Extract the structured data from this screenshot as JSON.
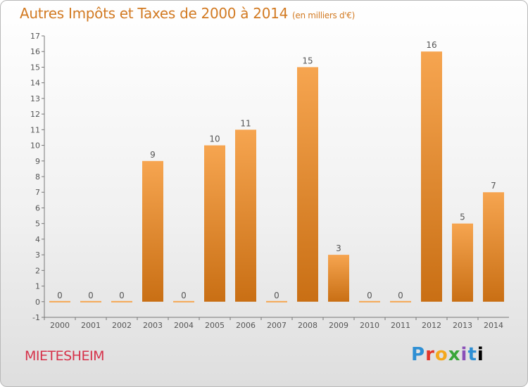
{
  "header": {
    "title": "Autres Impôts et Taxes de 2000 à 2014",
    "unit": "(en milliers d'€)"
  },
  "footer": {
    "commune": "MIETESHEIM",
    "logo_text": "Proxiti"
  },
  "colors": {
    "bar_top": "#f6a550",
    "bar_bottom": "#c96f14",
    "title": "#d27a22",
    "commune": "#d6324a"
  },
  "chart_data": {
    "type": "bar",
    "title": "Autres Impôts et Taxes de 2000 à 2014",
    "subtitle": "(en milliers d'€)",
    "xlabel": "",
    "ylabel": "",
    "categories": [
      "2000",
      "2001",
      "2002",
      "2003",
      "2004",
      "2005",
      "2006",
      "2007",
      "2008",
      "2009",
      "2010",
      "2011",
      "2012",
      "2013",
      "2014"
    ],
    "values": [
      0,
      0,
      0,
      9,
      0,
      10,
      11,
      0,
      15,
      3,
      0,
      0,
      16,
      5,
      7
    ],
    "data_labels": [
      "0",
      "0",
      "0",
      "9",
      "0",
      "10",
      "11",
      "0",
      "15",
      "3",
      "0",
      "0",
      "16",
      "5",
      "7"
    ],
    "y_ticks": [
      "-1",
      "0",
      "1",
      "2",
      "3",
      "4",
      "5",
      "6",
      "7",
      "8",
      "9",
      "10",
      "11",
      "12",
      "13",
      "14",
      "15",
      "16",
      "17"
    ],
    "ylim": [
      -1,
      17
    ],
    "grid": false,
    "legend": "none"
  }
}
